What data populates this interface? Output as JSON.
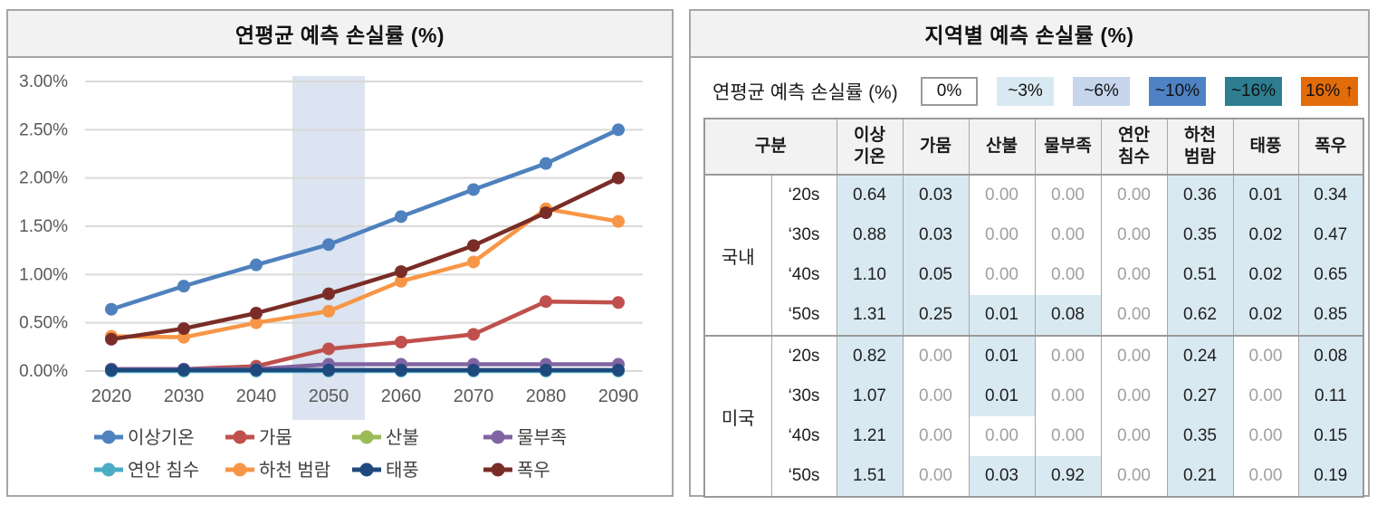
{
  "chart_data": [
    {
      "type": "line",
      "title": "연평균 예측 손실률 (%)",
      "x": [
        "2020",
        "2030",
        "2040",
        "2050",
        "2060",
        "2070",
        "2080",
        "2090"
      ],
      "ylim": [
        0,
        3.0
      ],
      "yticks": [
        "0.00%",
        "0.50%",
        "1.00%",
        "1.50%",
        "2.00%",
        "2.50%",
        "3.00%"
      ],
      "grid": true,
      "legend_position": "bottom",
      "highlight_band_x": "2050",
      "highlight_band_color": "#dbe4f0",
      "series": [
        {
          "name": "이상기온",
          "color": "#4e81bd",
          "values": [
            0.64,
            0.88,
            1.1,
            1.31,
            1.6,
            1.88,
            2.15,
            2.5
          ]
        },
        {
          "name": "가뭄",
          "color": "#c0504d",
          "values": [
            0.02,
            0.02,
            0.05,
            0.23,
            0.3,
            0.38,
            0.72,
            0.71
          ]
        },
        {
          "name": "산불",
          "color": "#9bbb59",
          "values": [
            0.01,
            0.01,
            0.01,
            0.01,
            0.01,
            0.01,
            0.01,
            0.01
          ]
        },
        {
          "name": "물부족",
          "color": "#8064a2",
          "values": [
            0.02,
            0.02,
            0.02,
            0.07,
            0.07,
            0.07,
            0.07,
            0.07
          ]
        },
        {
          "name": "연안 침수",
          "color": "#4bacc6",
          "values": [
            0.0,
            0.0,
            0.0,
            0.0,
            0.0,
            0.0,
            0.0,
            0.0
          ]
        },
        {
          "name": "하천 범람",
          "color": "#f79646",
          "values": [
            0.36,
            0.35,
            0.5,
            0.62,
            0.93,
            1.13,
            1.68,
            1.55
          ]
        },
        {
          "name": "태풍",
          "color": "#1f497d",
          "values": [
            0.01,
            0.01,
            0.01,
            0.01,
            0.01,
            0.01,
            0.01,
            0.01
          ]
        },
        {
          "name": "폭우",
          "color": "#7a2c27",
          "values": [
            0.33,
            0.44,
            0.6,
            0.8,
            1.03,
            1.3,
            1.64,
            2.0
          ]
        }
      ]
    },
    {
      "type": "table",
      "title": "지역별 예측 손실률 (%)",
      "legend": {
        "label": "연평균 예측 손실률 (%)",
        "bins": [
          {
            "label": "0%",
            "color": "#ffffff"
          },
          {
            "label": "~3%",
            "color": "#d9e9f1"
          },
          {
            "label": "~6%",
            "color": "#c6d5ec"
          },
          {
            "label": "~10%",
            "color": "#4e82c4"
          },
          {
            "label": "~16%",
            "color": "#2e7d91"
          },
          {
            "label": "16% ↑",
            "color": "#e26b0a"
          }
        ]
      },
      "corner_header": "구분",
      "columns": [
        "이상\n기온",
        "가뭄",
        "산불",
        "물부족",
        "연안\n침수",
        "하천\n범람",
        "태풍",
        "폭우"
      ],
      "groups": [
        {
          "name": "국내",
          "rows": [
            {
              "period": "‘20s",
              "values": [
                "0.64",
                "0.03",
                "0.00",
                "0.00",
                "0.00",
                "0.36",
                "0.01",
                "0.34"
              ]
            },
            {
              "period": "‘30s",
              "values": [
                "0.88",
                "0.03",
                "0.00",
                "0.00",
                "0.00",
                "0.35",
                "0.02",
                "0.47"
              ]
            },
            {
              "period": "‘40s",
              "values": [
                "1.10",
                "0.05",
                "0.00",
                "0.00",
                "0.00",
                "0.51",
                "0.02",
                "0.65"
              ]
            },
            {
              "period": "‘50s",
              "values": [
                "1.31",
                "0.25",
                "0.01",
                "0.08",
                "0.00",
                "0.62",
                "0.02",
                "0.85"
              ]
            }
          ]
        },
        {
          "name": "미국",
          "rows": [
            {
              "period": "‘20s",
              "values": [
                "0.82",
                "0.00",
                "0.01",
                "0.00",
                "0.00",
                "0.24",
                "0.00",
                "0.08"
              ]
            },
            {
              "period": "‘30s",
              "values": [
                "1.07",
                "0.00",
                "0.01",
                "0.00",
                "0.00",
                "0.27",
                "0.00",
                "0.11"
              ]
            },
            {
              "period": "‘40s",
              "values": [
                "1.21",
                "0.00",
                "0.00",
                "0.00",
                "0.00",
                "0.35",
                "0.00",
                "0.15"
              ]
            },
            {
              "period": "‘50s",
              "values": [
                "1.51",
                "0.00",
                "0.03",
                "0.92",
                "0.00",
                "0.21",
                "0.00",
                "0.19"
              ]
            }
          ]
        }
      ],
      "highlight_rule": "values greater than 0 use the ~3% fill",
      "style": {
        "highlight_cell": "#d9e9f2",
        "zero_text": "#a0a0a0",
        "gridline": "#d9d9d9",
        "axis_text": "#595959",
        "panel_border": "#a6a6a6",
        "panel_title_bg": "#f2f2f2"
      }
    }
  ]
}
